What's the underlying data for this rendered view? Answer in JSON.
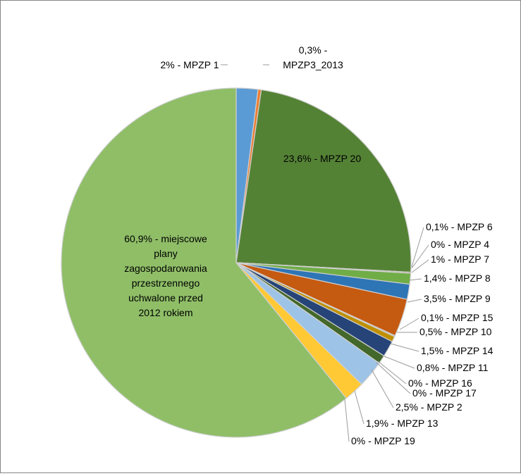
{
  "chart_data": {
    "type": "pie",
    "title": "",
    "slices": [
      {
        "label": "2% - MPZP 1",
        "value": 2.0,
        "color": "#5b9bd5"
      },
      {
        "label": "0,3% - MPZP3_2013",
        "value": 0.3,
        "color": "#ed7d31"
      },
      {
        "label": "23,6% - MPZP 20",
        "value": 23.6,
        "color": "#548235"
      },
      {
        "label": "0,1% - MPZP 6",
        "value": 0.1,
        "color": "#7f6000"
      },
      {
        "label": "0% - MPZP 4",
        "value": 0.0,
        "color": "#843c0c"
      },
      {
        "label": "1% - MPZP 7",
        "value": 1.0,
        "color": "#70ad47"
      },
      {
        "label": "1,4% - MPZP 8",
        "value": 1.4,
        "color": "#2e75b6"
      },
      {
        "label": "3,5% - MPZP 9",
        "value": 3.5,
        "color": "#c55a11"
      },
      {
        "label": "0,1% - MPZP 15",
        "value": 0.1,
        "color": "#a5a5a5"
      },
      {
        "label": "0,5% - MPZP 10",
        "value": 0.5,
        "color": "#bf9000"
      },
      {
        "label": "1,5% - MPZP 14",
        "value": 1.5,
        "color": "#264478"
      },
      {
        "label": "0,8% - MPZP 11",
        "value": 0.8,
        "color": "#43682b"
      },
      {
        "label": "0% - MPZP 16",
        "value": 0.0,
        "color": "#636363"
      },
      {
        "label": "0% - MPZP 17",
        "value": 0.0,
        "color": "#997300"
      },
      {
        "label": "2,5% - MPZP 2",
        "value": 2.5,
        "color": "#9dc3e6"
      },
      {
        "label": "1,9% - MPZP 13",
        "value": 1.9,
        "color": "#ffc935"
      },
      {
        "label": "0% - MPZP 19",
        "value": 0.0,
        "color": "#a9d18e"
      },
      {
        "label": "60,9%  - miejscowe plany zagospodarowania przestrzennego uchwalone przed 2012 rokiem",
        "value": 60.9,
        "color": "#8fbe67"
      }
    ]
  }
}
